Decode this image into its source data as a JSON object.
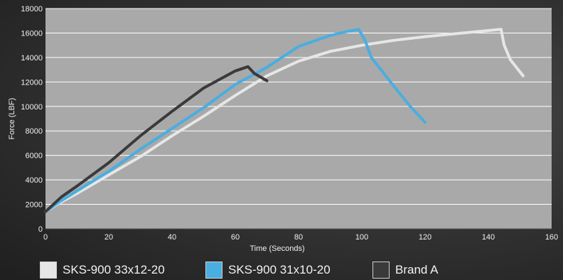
{
  "chart_data": {
    "type": "line",
    "xlabel": "Time (Seconds)",
    "ylabel": "Force (LBF)",
    "xlim": [
      0,
      160
    ],
    "ylim": [
      0,
      18000
    ],
    "xticks": [
      0,
      20,
      40,
      60,
      80,
      100,
      120,
      140,
      160
    ],
    "yticks": [
      0,
      2000,
      4000,
      6000,
      8000,
      10000,
      12000,
      14000,
      16000,
      18000
    ],
    "grid": "horizontal",
    "legend_position": "bottom",
    "background_color": "#a9a9a9",
    "series": [
      {
        "name": "SKS-900 33x12-20",
        "color": "#e6e6e6",
        "x": [
          0,
          5,
          10,
          20,
          30,
          40,
          50,
          60,
          70,
          80,
          90,
          100,
          110,
          120,
          130,
          140,
          144,
          145,
          147,
          151
        ],
        "y": [
          1400,
          2200,
          2900,
          4400,
          5900,
          7600,
          9200,
          10900,
          12500,
          13700,
          14500,
          15000,
          15400,
          15700,
          15950,
          16200,
          16300,
          15000,
          13800,
          12500
        ]
      },
      {
        "name": "SKS-900 31x10-20",
        "color": "#4aaee0",
        "x": [
          0,
          5,
          10,
          20,
          30,
          40,
          50,
          60,
          70,
          80,
          90,
          95,
          99,
          101,
          103,
          110,
          115,
          120
        ],
        "y": [
          1400,
          2300,
          3100,
          4700,
          6500,
          8200,
          9900,
          11800,
          13200,
          14900,
          15800,
          16100,
          16300,
          15400,
          14000,
          11700,
          10100,
          8700
        ]
      },
      {
        "name": "Brand A",
        "color": "#3a3a3a",
        "x": [
          0,
          5,
          10,
          20,
          30,
          40,
          50,
          60,
          64,
          66,
          70
        ],
        "y": [
          1400,
          2600,
          3500,
          5400,
          7600,
          9600,
          11500,
          12900,
          13250,
          12700,
          12100
        ]
      }
    ]
  }
}
